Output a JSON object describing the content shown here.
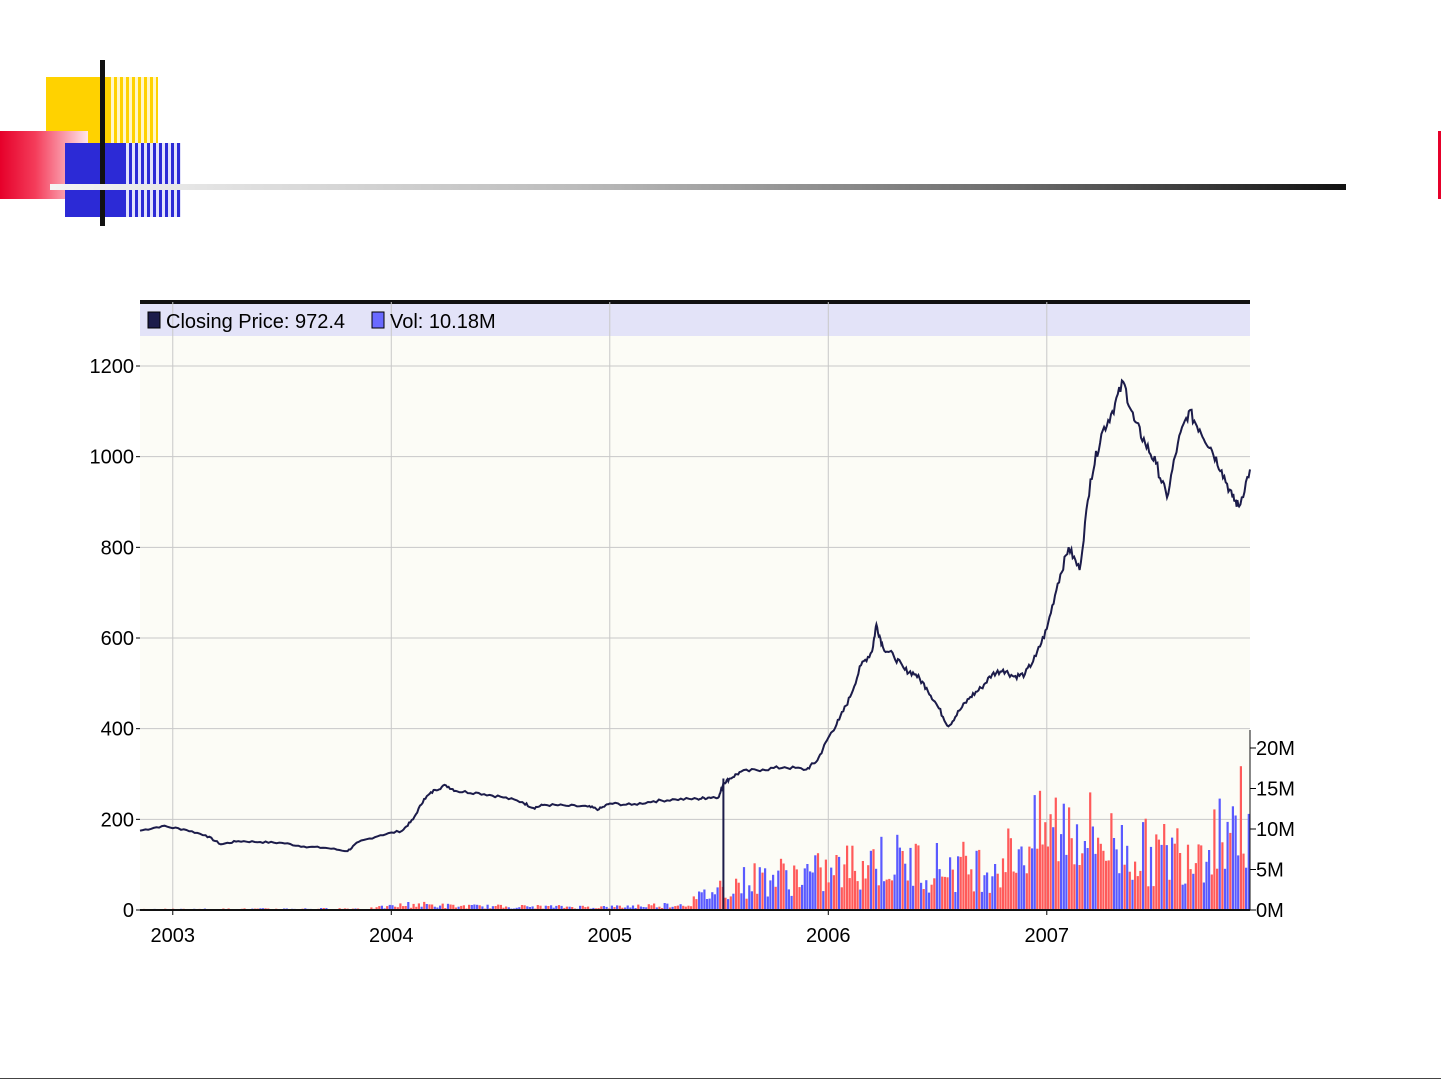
{
  "colors": {
    "price_line": "#1c1c4a",
    "vol_up": "#ff5a5a",
    "vol_down": "#5a5aff",
    "legend_bg": "#e3e3f8",
    "plot_bg": "#fcfcf6",
    "grid": "#c8c8c8"
  },
  "chart_data": {
    "type": "line",
    "legend": {
      "price_label": "Closing Price:",
      "price_value": "972.4",
      "vol_label": "Vol:",
      "vol_value": "10.18M",
      "placement": "top-left"
    },
    "x_axis": {
      "ticks": [
        "2003",
        "2004",
        "2005",
        "2006",
        "2007"
      ],
      "range": [
        2002.85,
        2007.93
      ]
    },
    "y_axis_price": {
      "ticks": [
        "0",
        "200",
        "400",
        "600",
        "800",
        "1000",
        "1200"
      ],
      "range": [
        0,
        1200
      ]
    },
    "y_axis_volume": {
      "ticks": [
        "0M",
        "5M",
        "10M",
        "15M",
        "20M"
      ],
      "range": [
        0,
        20
      ]
    },
    "grid": true,
    "series": [
      {
        "name": "Closing Price",
        "points": [
          [
            2002.85,
            175
          ],
          [
            2002.95,
            185
          ],
          [
            2003.05,
            178
          ],
          [
            2003.15,
            165
          ],
          [
            2003.22,
            145
          ],
          [
            2003.3,
            152
          ],
          [
            2003.4,
            150
          ],
          [
            2003.5,
            148
          ],
          [
            2003.6,
            140
          ],
          [
            2003.7,
            137
          ],
          [
            2003.8,
            130
          ],
          [
            2003.85,
            150
          ],
          [
            2003.95,
            165
          ],
          [
            2004.05,
            175
          ],
          [
            2004.1,
            200
          ],
          [
            2004.15,
            245
          ],
          [
            2004.2,
            265
          ],
          [
            2004.25,
            275
          ],
          [
            2004.3,
            262
          ],
          [
            2004.4,
            258
          ],
          [
            2004.5,
            250
          ],
          [
            2004.6,
            238
          ],
          [
            2004.65,
            225
          ],
          [
            2004.7,
            232
          ],
          [
            2004.8,
            230
          ],
          [
            2004.9,
            228
          ],
          [
            2004.95,
            222
          ],
          [
            2005.0,
            235
          ],
          [
            2005.1,
            232
          ],
          [
            2005.2,
            240
          ],
          [
            2005.3,
            244
          ],
          [
            2005.4,
            245
          ],
          [
            2005.45,
            248
          ],
          [
            2005.5,
            250
          ],
          [
            2005.52,
            280
          ],
          [
            2005.55,
            290
          ],
          [
            2005.6,
            305
          ],
          [
            2005.7,
            310
          ],
          [
            2005.8,
            315
          ],
          [
            2005.9,
            310
          ],
          [
            2005.95,
            330
          ],
          [
            2006.0,
            380
          ],
          [
            2006.05,
            420
          ],
          [
            2006.1,
            470
          ],
          [
            2006.15,
            540
          ],
          [
            2006.2,
            570
          ],
          [
            2006.22,
            630
          ],
          [
            2006.25,
            580
          ],
          [
            2006.3,
            560
          ],
          [
            2006.35,
            530
          ],
          [
            2006.4,
            520
          ],
          [
            2006.45,
            490
          ],
          [
            2006.5,
            450
          ],
          [
            2006.55,
            405
          ],
          [
            2006.6,
            440
          ],
          [
            2006.65,
            470
          ],
          [
            2006.7,
            490
          ],
          [
            2006.75,
            520
          ],
          [
            2006.8,
            530
          ],
          [
            2006.85,
            515
          ],
          [
            2006.9,
            520
          ],
          [
            2006.95,
            560
          ],
          [
            2007.0,
            620
          ],
          [
            2007.05,
            720
          ],
          [
            2007.1,
            800
          ],
          [
            2007.15,
            750
          ],
          [
            2007.2,
            950
          ],
          [
            2007.25,
            1050
          ],
          [
            2007.3,
            1100
          ],
          [
            2007.35,
            1165
          ],
          [
            2007.4,
            1080
          ],
          [
            2007.45,
            1030
          ],
          [
            2007.5,
            985
          ],
          [
            2007.55,
            910
          ],
          [
            2007.6,
            1030
          ],
          [
            2007.65,
            1100
          ],
          [
            2007.7,
            1060
          ],
          [
            2007.75,
            1020
          ],
          [
            2007.8,
            970
          ],
          [
            2007.85,
            910
          ],
          [
            2007.88,
            890
          ],
          [
            2007.93,
            972
          ]
        ]
      },
      {
        "name": "Vol",
        "unit": "M",
        "envelope": [
          [
            2002.85,
            0.1
          ],
          [
            2003.9,
            0.2
          ],
          [
            2004.1,
            0.8
          ],
          [
            2004.3,
            0.5
          ],
          [
            2005.0,
            0.4
          ],
          [
            2005.35,
            0.8
          ],
          [
            2005.5,
            3
          ],
          [
            2005.7,
            4.5
          ],
          [
            2006.0,
            5
          ],
          [
            2006.2,
            7
          ],
          [
            2006.5,
            6
          ],
          [
            2006.75,
            6
          ],
          [
            2006.95,
            10
          ],
          [
            2007.1,
            12
          ],
          [
            2007.3,
            9
          ],
          [
            2007.5,
            7.5
          ],
          [
            2007.7,
            9
          ],
          [
            2007.85,
            13
          ],
          [
            2007.93,
            12
          ]
        ]
      }
    ]
  }
}
